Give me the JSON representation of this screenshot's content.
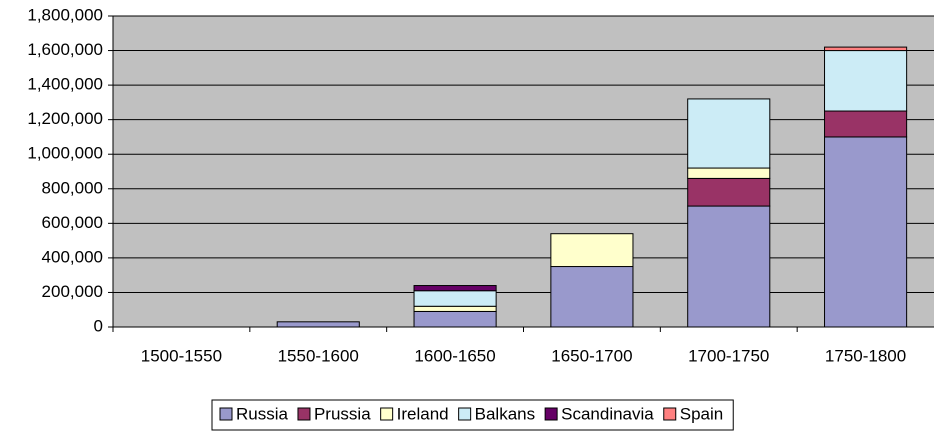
{
  "chart_data": {
    "type": "stacked_bar",
    "categories": [
      "1500-1550",
      "1550-1600",
      "1600-1650",
      "1650-1700",
      "1700-1750",
      "1750-1800"
    ],
    "series": [
      {
        "name": "Russia",
        "color": "#9999cc",
        "values": [
          0,
          30000,
          90000,
          350000,
          700000,
          1100000
        ]
      },
      {
        "name": "Prussia",
        "color": "#993366",
        "values": [
          0,
          0,
          0,
          0,
          160000,
          150000
        ]
      },
      {
        "name": "Ireland",
        "color": "#ffffcc",
        "values": [
          0,
          0,
          30000,
          190000,
          60000,
          0
        ]
      },
      {
        "name": "Balkans",
        "color": "#ccecf6",
        "values": [
          0,
          0,
          90000,
          0,
          400000,
          350000
        ]
      },
      {
        "name": "Scandinavia",
        "color": "#660066",
        "values": [
          0,
          0,
          30000,
          0,
          0,
          0
        ]
      },
      {
        "name": "Spain",
        "color": "#ff8080",
        "values": [
          0,
          0,
          0,
          0,
          0,
          20000
        ]
      }
    ],
    "ylim": [
      0,
      1800000
    ],
    "yticks": [
      0,
      {
        "value": 200000,
        "label": "200,000"
      },
      {
        "value": 400000,
        "label": "400,000"
      },
      {
        "value": 600000,
        "label": "600,000"
      },
      {
        "value": 800000,
        "label": "800,000"
      },
      {
        "value": 1000000,
        "label": "1,000,000"
      },
      {
        "value": 1200000,
        "label": "1,200,000"
      },
      {
        "value": 1400000,
        "label": "1,400,000"
      },
      {
        "value": 1600000,
        "label": "1,600,000"
      },
      {
        "value": 1800000,
        "label": "1,800,000"
      }
    ],
    "grid": true,
    "background": "#c0c0c0",
    "legend": "bottom"
  }
}
